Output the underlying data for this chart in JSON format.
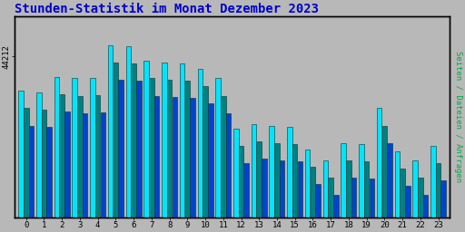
{
  "title": "Stunden-Statistik im Monat Dezember 2023",
  "ylabel": "Seiten / Dateien / Anfragen",
  "ytick_label": "44212",
  "background_color": "#b8b8b8",
  "plot_bg_color": "#b8b8b8",
  "bar_color_cyan": "#00e5ff",
  "bar_color_teal": "#008080",
  "bar_color_blue": "#0044cc",
  "bar_outline": "#003333",
  "categories": [
    0,
    1,
    2,
    3,
    4,
    5,
    6,
    7,
    8,
    9,
    10,
    11,
    12,
    13,
    14,
    15,
    16,
    17,
    18,
    19,
    20,
    21,
    22,
    23
  ],
  "values_cyan": [
    920,
    918,
    945,
    942,
    943,
    1000,
    998,
    972,
    970,
    968,
    958,
    942,
    855,
    862,
    860,
    858,
    818,
    800,
    830,
    828,
    890,
    815,
    800,
    825
  ],
  "values_teal": [
    890,
    888,
    915,
    912,
    913,
    970,
    968,
    942,
    940,
    938,
    928,
    912,
    825,
    832,
    830,
    828,
    788,
    770,
    800,
    798,
    860,
    785,
    770,
    795
  ],
  "values_blue": [
    860,
    858,
    885,
    882,
    883,
    940,
    938,
    912,
    910,
    908,
    898,
    882,
    795,
    802,
    800,
    798,
    758,
    740,
    770,
    768,
    830,
    755,
    740,
    765
  ],
  "ylim_min": 700,
  "ylim_max": 1050,
  "ytick_val": 980,
  "title_color": "#0000cc",
  "title_fontsize": 10,
  "ylabel_color": "#00aa44",
  "border_color": "#000000",
  "figsize": [
    5.12,
    2.56
  ],
  "dpi": 100
}
